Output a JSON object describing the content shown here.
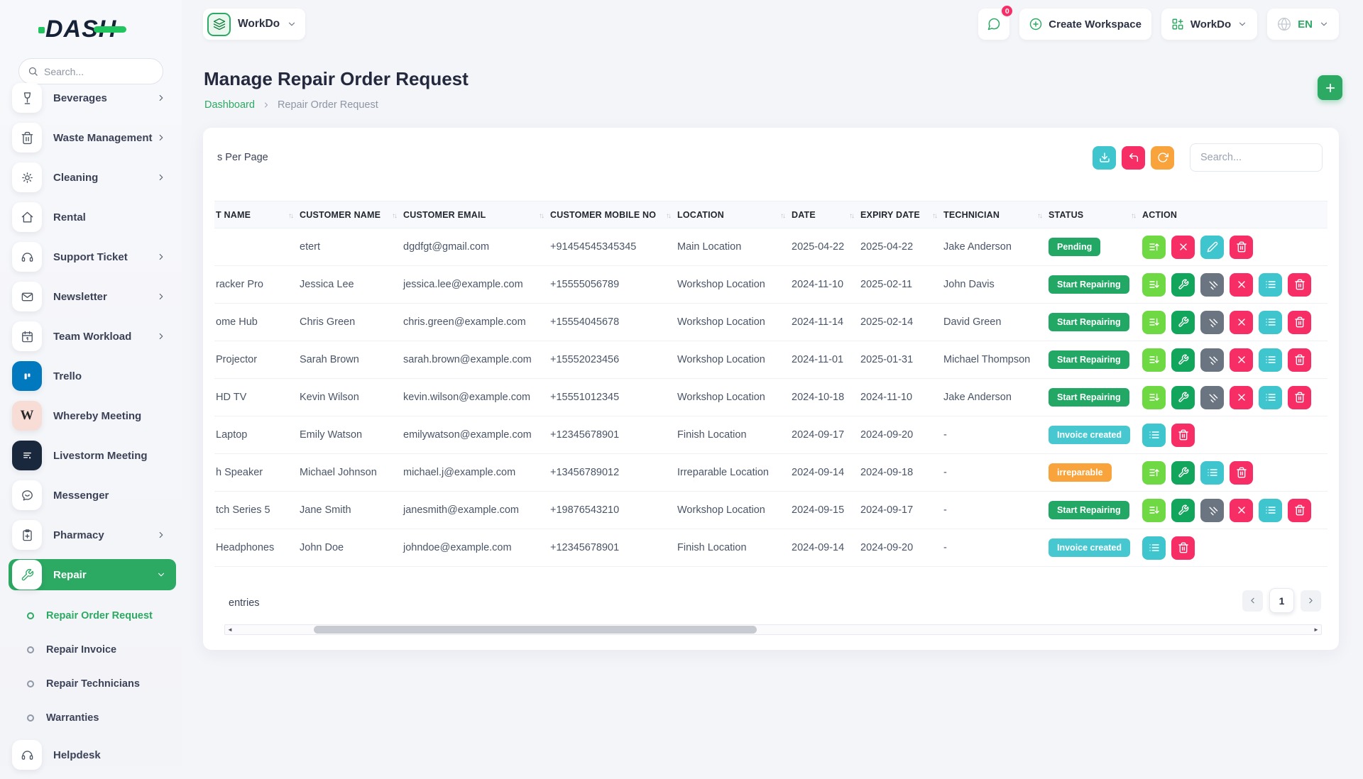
{
  "brand": {
    "name": "DASH"
  },
  "colors": {
    "primary_green": "#2ca963",
    "light_green": "#6fd943",
    "action_green": "#12a65c",
    "slate": "#6b7582",
    "pink": "#f62e65",
    "teal": "#3fc5ce",
    "badge_green": "#22a765",
    "badge_teal": "#47c8d1",
    "badge_orange": "#f9a33c"
  },
  "sidebar": {
    "search_placeholder": "Search...",
    "items": [
      {
        "key": "beverages",
        "label": "Beverages",
        "icon": "wine-icon",
        "chevron": "right"
      },
      {
        "key": "waste-management",
        "label": "Waste Management",
        "icon": "trash-icon",
        "chevron": "right"
      },
      {
        "key": "cleaning",
        "label": "Cleaning",
        "icon": "sun-icon",
        "chevron": "right"
      },
      {
        "key": "rental",
        "label": "Rental",
        "icon": "home-icon",
        "chevron": ""
      },
      {
        "key": "support-ticket",
        "label": "Support Ticket",
        "icon": "headset-icon",
        "chevron": "right"
      },
      {
        "key": "newsletter",
        "label": "Newsletter",
        "icon": "mail-icon",
        "chevron": "right"
      },
      {
        "key": "team-workload",
        "label": "Team Workload",
        "icon": "calendar-icon",
        "chevron": "right"
      },
      {
        "key": "trello",
        "label": "Trello",
        "icon": "trello-icon",
        "chevron": "",
        "tile": "trello"
      },
      {
        "key": "whereby-meeting",
        "label": "Whereby Meeting",
        "icon": "whereby-icon",
        "chevron": "",
        "tile": "whereby"
      },
      {
        "key": "livestorm-meeting",
        "label": "Livestorm Meeting",
        "icon": "livestorm-icon",
        "chevron": "",
        "tile": "livestorm"
      },
      {
        "key": "messenger",
        "label": "Messenger",
        "icon": "messenger-icon",
        "chevron": ""
      },
      {
        "key": "pharmacy",
        "label": "Pharmacy",
        "icon": "clipboard-plus-icon",
        "chevron": "right"
      },
      {
        "key": "repair",
        "label": "Repair",
        "icon": "wrench-icon",
        "chevron": "down",
        "active": true
      },
      {
        "key": "helpdesk",
        "label": "Helpdesk",
        "icon": "headphones-icon",
        "chevron": ""
      }
    ],
    "repair_children": [
      {
        "key": "repair-order-request",
        "label": "Repair Order Request",
        "active": true
      },
      {
        "key": "repair-invoice",
        "label": "Repair Invoice",
        "active": false
      },
      {
        "key": "repair-technicians",
        "label": "Repair Technicians",
        "active": false
      },
      {
        "key": "warranties",
        "label": "Warranties",
        "active": false
      }
    ]
  },
  "topbar": {
    "workspace_name": "WorkDo",
    "chat_badge": "0",
    "create_workspace_label": "Create Workspace",
    "workdo_label": "WorkDo",
    "language": "EN"
  },
  "page": {
    "title": "Manage Repair Order Request",
    "breadcrumb_home": "Dashboard",
    "breadcrumb_current": "Repair Order Request"
  },
  "toolbar": {
    "per_page_label": "s Per Page",
    "search_placeholder": "Search..."
  },
  "table": {
    "columns": [
      {
        "label": "T NAME",
        "sortable": true
      },
      {
        "label": "CUSTOMER NAME",
        "sortable": true
      },
      {
        "label": "CUSTOMER EMAIL",
        "sortable": true
      },
      {
        "label": "CUSTOMER MOBILE NO",
        "sortable": true
      },
      {
        "label": "LOCATION",
        "sortable": true
      },
      {
        "label": "DATE",
        "sortable": true
      },
      {
        "label": "EXPIRY DATE",
        "sortable": true
      },
      {
        "label": "TECHNICIAN",
        "sortable": true
      },
      {
        "label": "STATUS",
        "sortable": true
      },
      {
        "label": "ACTION",
        "sortable": false
      }
    ],
    "rows": [
      {
        "product": "",
        "customer": "etert",
        "email": "dgdfgt@gmail.com",
        "mobile": "+91454545345345",
        "location": "Main Location",
        "date": "2025-04-22",
        "expiry": "2025-04-22",
        "technician": "Jake Anderson",
        "status": "Pending",
        "status_color": "bg-green",
        "actions": [
          {
            "icon": "reorder-up-icon",
            "color": "c-lgreen",
            "name": "reorder-button"
          },
          {
            "icon": "close-icon",
            "color": "c-pink",
            "name": "cancel-button"
          },
          {
            "icon": "edit-icon",
            "color": "c-teal",
            "name": "edit-button"
          },
          {
            "icon": "trash-icon",
            "color": "c-pink",
            "name": "delete-button"
          }
        ]
      },
      {
        "product": "racker Pro",
        "customer": "Jessica Lee",
        "email": "jessica.lee@example.com",
        "mobile": "+15555056789",
        "location": "Workshop Location",
        "date": "2024-11-10",
        "expiry": "2025-02-11",
        "technician": "John Davis",
        "status": "Start Repairing",
        "status_color": "bg-green",
        "actions": [
          {
            "icon": "reorder-down-icon",
            "color": "c-lgreen",
            "name": "reorder-button"
          },
          {
            "icon": "wrench-icon",
            "color": "c-green",
            "name": "repair-button"
          },
          {
            "icon": "signal-icon",
            "color": "c-slate",
            "name": "progress-button"
          },
          {
            "icon": "close-icon",
            "color": "c-pink",
            "name": "cancel-button"
          },
          {
            "icon": "list-icon",
            "color": "c-teal",
            "name": "details-button"
          },
          {
            "icon": "trash-icon",
            "color": "c-pink",
            "name": "delete-button"
          }
        ]
      },
      {
        "product": "ome Hub",
        "customer": "Chris Green",
        "email": "chris.green@example.com",
        "mobile": "+15554045678",
        "location": "Workshop Location",
        "date": "2024-11-14",
        "expiry": "2025-02-14",
        "technician": "David Green",
        "status": "Start Repairing",
        "status_color": "bg-green",
        "actions": [
          {
            "icon": "reorder-down-icon",
            "color": "c-lgreen",
            "name": "reorder-button"
          },
          {
            "icon": "wrench-icon",
            "color": "c-green",
            "name": "repair-button"
          },
          {
            "icon": "signal-icon",
            "color": "c-slate",
            "name": "progress-button"
          },
          {
            "icon": "close-icon",
            "color": "c-pink",
            "name": "cancel-button"
          },
          {
            "icon": "list-icon",
            "color": "c-teal",
            "name": "details-button"
          },
          {
            "icon": "trash-icon",
            "color": "c-pink",
            "name": "delete-button"
          }
        ]
      },
      {
        "product": "Projector",
        "customer": "Sarah Brown",
        "email": "sarah.brown@example.com",
        "mobile": "+15552023456",
        "location": "Workshop Location",
        "date": "2024-11-01",
        "expiry": "2025-01-31",
        "technician": "Michael Thompson",
        "status": "Start Repairing",
        "status_color": "bg-green",
        "actions": [
          {
            "icon": "reorder-down-icon",
            "color": "c-lgreen",
            "name": "reorder-button"
          },
          {
            "icon": "wrench-icon",
            "color": "c-green",
            "name": "repair-button"
          },
          {
            "icon": "signal-icon",
            "color": "c-slate",
            "name": "progress-button"
          },
          {
            "icon": "close-icon",
            "color": "c-pink",
            "name": "cancel-button"
          },
          {
            "icon": "list-icon",
            "color": "c-teal",
            "name": "details-button"
          },
          {
            "icon": "trash-icon",
            "color": "c-pink",
            "name": "delete-button"
          }
        ]
      },
      {
        "product": "HD TV",
        "customer": "Kevin Wilson",
        "email": "kevin.wilson@example.com",
        "mobile": "+15551012345",
        "location": "Workshop Location",
        "date": "2024-10-18",
        "expiry": "2024-11-10",
        "technician": "Jake Anderson",
        "status": "Start Repairing",
        "status_color": "bg-green",
        "actions": [
          {
            "icon": "reorder-down-icon",
            "color": "c-lgreen",
            "name": "reorder-button"
          },
          {
            "icon": "wrench-icon",
            "color": "c-green",
            "name": "repair-button"
          },
          {
            "icon": "signal-icon",
            "color": "c-slate",
            "name": "progress-button"
          },
          {
            "icon": "close-icon",
            "color": "c-pink",
            "name": "cancel-button"
          },
          {
            "icon": "list-icon",
            "color": "c-teal",
            "name": "details-button"
          },
          {
            "icon": "trash-icon",
            "color": "c-pink",
            "name": "delete-button"
          }
        ]
      },
      {
        "product": "Laptop",
        "customer": "Emily Watson",
        "email": "emilywatson@example.com",
        "mobile": "+12345678901",
        "location": "Finish Location",
        "date": "2024-09-17",
        "expiry": "2024-09-20",
        "technician": "-",
        "status": "Invoice created",
        "status_color": "bg-teal",
        "actions": [
          {
            "icon": "list-icon",
            "color": "c-teal",
            "name": "details-button"
          },
          {
            "icon": "trash-icon",
            "color": "c-pink",
            "name": "delete-button"
          }
        ]
      },
      {
        "product": "h Speaker",
        "customer": "Michael Johnson",
        "email": "michael.j@example.com",
        "mobile": "+13456789012",
        "location": "Irreparable Location",
        "date": "2024-09-14",
        "expiry": "2024-09-18",
        "technician": "-",
        "status": "irreparable",
        "status_color": "bg-orange",
        "actions": [
          {
            "icon": "reorder-up-icon",
            "color": "c-lgreen",
            "name": "reorder-button"
          },
          {
            "icon": "wrench-icon",
            "color": "c-green",
            "name": "repair-button"
          },
          {
            "icon": "list-icon",
            "color": "c-teal",
            "name": "details-button"
          },
          {
            "icon": "trash-icon",
            "color": "c-pink",
            "name": "delete-button"
          }
        ]
      },
      {
        "product": "tch Series 5",
        "customer": "Jane Smith",
        "email": "janesmith@example.com",
        "mobile": "+19876543210",
        "location": "Workshop Location",
        "date": "2024-09-15",
        "expiry": "2024-09-17",
        "technician": "-",
        "status": "Start Repairing",
        "status_color": "bg-green",
        "actions": [
          {
            "icon": "reorder-down-icon",
            "color": "c-lgreen",
            "name": "reorder-button"
          },
          {
            "icon": "wrench-icon",
            "color": "c-green",
            "name": "repair-button"
          },
          {
            "icon": "signal-icon",
            "color": "c-slate",
            "name": "progress-button"
          },
          {
            "icon": "close-icon",
            "color": "c-pink",
            "name": "cancel-button"
          },
          {
            "icon": "list-icon",
            "color": "c-teal",
            "name": "details-button"
          },
          {
            "icon": "trash-icon",
            "color": "c-pink",
            "name": "delete-button"
          }
        ]
      },
      {
        "product": "Headphones",
        "customer": "John Doe",
        "email": "johndoe@example.com",
        "mobile": "+12345678901",
        "location": "Finish Location",
        "date": "2024-09-14",
        "expiry": "2024-09-20",
        "technician": "-",
        "status": "Invoice created",
        "status_color": "bg-teal",
        "actions": [
          {
            "icon": "list-icon",
            "color": "c-teal",
            "name": "details-button"
          },
          {
            "icon": "trash-icon",
            "color": "c-pink",
            "name": "delete-button"
          }
        ]
      }
    ]
  },
  "footer": {
    "entries_label": "entries",
    "current_page": "1"
  }
}
